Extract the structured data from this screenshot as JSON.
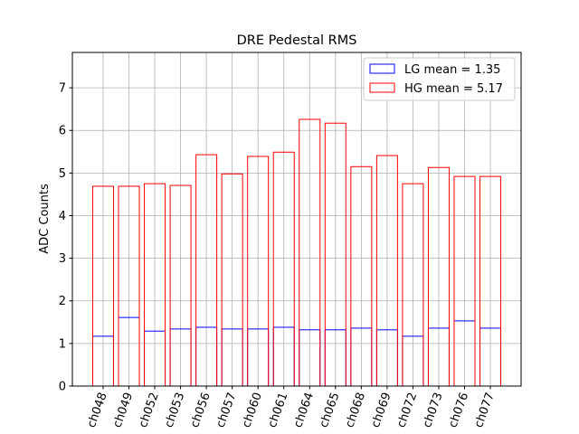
{
  "chart_data": {
    "type": "bar",
    "title": "DRE Pedestal RMS",
    "xlabel": "",
    "ylabel": "ADC Counts",
    "ylim": [
      0,
      7.83
    ],
    "yticks": [
      0,
      1,
      2,
      3,
      4,
      5,
      6,
      7
    ],
    "grid": true,
    "legend_position": "top-right",
    "categories": [
      "ch048",
      "ch049",
      "ch052",
      "ch053",
      "ch056",
      "ch057",
      "ch060",
      "ch061",
      "ch064",
      "ch065",
      "ch068",
      "ch069",
      "ch072",
      "ch073",
      "ch076",
      "ch077"
    ],
    "series": [
      {
        "name": "LG mean = 1.35",
        "color": "#0000ff",
        "values": [
          1.17,
          1.61,
          1.29,
          1.34,
          1.38,
          1.34,
          1.34,
          1.38,
          1.32,
          1.32,
          1.36,
          1.32,
          1.17,
          1.36,
          1.53,
          1.36
        ]
      },
      {
        "name": "HG mean = 5.17",
        "color": "#ff0000",
        "values": [
          4.69,
          4.69,
          4.75,
          4.71,
          5.43,
          4.98,
          5.39,
          5.49,
          6.26,
          6.17,
          5.15,
          5.41,
          4.75,
          5.13,
          4.92,
          4.92
        ]
      }
    ]
  }
}
